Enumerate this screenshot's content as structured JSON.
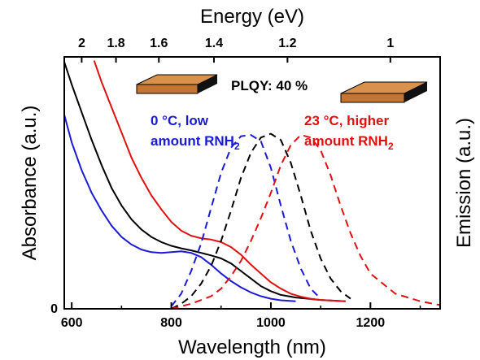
{
  "chart_data": {
    "type": "line",
    "xlabel": "Wavelength (nm)",
    "ylabel_left": "Absorbance (a.u.)",
    "ylabel_right": "Emission (a.u.)",
    "top_axis_label": "Energy (eV)",
    "xlim": [
      585,
      1340
    ],
    "ylim": [
      0,
      1
    ],
    "x_ticks": [
      600,
      800,
      1000,
      1200
    ],
    "y_ticks": [
      0
    ],
    "top_ticks": [
      {
        "label": "2",
        "value": 2.0
      },
      {
        "label": "1.8",
        "value": 1.8
      },
      {
        "label": "1.6",
        "value": 1.6
      },
      {
        "label": "1.4",
        "value": 1.4
      },
      {
        "label": "1.2",
        "value": 1.2
      },
      {
        "label": "1",
        "value": 1.0
      }
    ],
    "grid": false,
    "annotations": {
      "plqy": "PLQY: 40 %",
      "blue_line1": "0 °C, low",
      "blue_line2_main": "amount RNH",
      "blue_line2_sub": "2",
      "red_line1": "23 °C, higher",
      "red_line2_main": "amount RNH",
      "red_line2_sub": "2"
    },
    "colors": {
      "blue": "#1a1ad6",
      "black": "#000000",
      "red": "#e01010",
      "slab_face": "#c57532",
      "slab_edge": "#000000"
    },
    "series": [
      {
        "color": "blue",
        "style": "solid",
        "role": "absorbance",
        "x": [
          585,
          600,
          620,
          640,
          660,
          680,
          700,
          720,
          740,
          760,
          780,
          800,
          820,
          840,
          860,
          880,
          900,
          920,
          940,
          960,
          980,
          1000,
          1020,
          1050
        ],
        "y": [
          0.77,
          0.66,
          0.55,
          0.46,
          0.39,
          0.33,
          0.285,
          0.255,
          0.235,
          0.225,
          0.222,
          0.225,
          0.228,
          0.222,
          0.205,
          0.175,
          0.14,
          0.11,
          0.085,
          0.065,
          0.05,
          0.04,
          0.034,
          0.03
        ]
      },
      {
        "color": "black",
        "style": "solid",
        "role": "absorbance",
        "x": [
          585,
          600,
          620,
          640,
          660,
          680,
          700,
          720,
          740,
          760,
          780,
          800,
          820,
          840,
          860,
          880,
          900,
          920,
          940,
          960,
          980,
          1000,
          1020,
          1050,
          1100,
          1150
        ],
        "y": [
          0.98,
          0.89,
          0.78,
          0.67,
          0.57,
          0.48,
          0.41,
          0.355,
          0.315,
          0.285,
          0.265,
          0.25,
          0.24,
          0.232,
          0.222,
          0.212,
          0.2,
          0.18,
          0.15,
          0.12,
          0.09,
          0.07,
          0.055,
          0.045,
          0.035,
          0.03
        ]
      },
      {
        "color": "red",
        "style": "solid",
        "role": "absorbance",
        "x": [
          645,
          660,
          680,
          700,
          720,
          740,
          760,
          780,
          800,
          820,
          840,
          860,
          880,
          900,
          920,
          940,
          960,
          980,
          1000,
          1020,
          1040,
          1060,
          1080,
          1100,
          1150
        ],
        "y": [
          0.985,
          0.9,
          0.8,
          0.7,
          0.6,
          0.52,
          0.45,
          0.395,
          0.345,
          0.31,
          0.29,
          0.28,
          0.275,
          0.265,
          0.245,
          0.215,
          0.175,
          0.14,
          0.105,
          0.08,
          0.06,
          0.048,
          0.04,
          0.035,
          0.03
        ]
      },
      {
        "color": "blue",
        "style": "dashed",
        "role": "emission",
        "x": [
          800,
          820,
          840,
          860,
          880,
          900,
          920,
          940,
          960,
          980,
          1000,
          1020,
          1040,
          1060,
          1080,
          1100
        ],
        "y": [
          0.01,
          0.06,
          0.15,
          0.26,
          0.4,
          0.54,
          0.64,
          0.685,
          0.69,
          0.665,
          0.56,
          0.41,
          0.27,
          0.16,
          0.08,
          0.04
        ]
      },
      {
        "color": "black",
        "style": "dashed",
        "role": "emission",
        "x": [
          800,
          820,
          840,
          860,
          880,
          900,
          920,
          940,
          960,
          980,
          1000,
          1020,
          1040,
          1060,
          1080,
          1100,
          1120,
          1140,
          1160
        ],
        "y": [
          0.0,
          0.02,
          0.05,
          0.1,
          0.17,
          0.27,
          0.39,
          0.52,
          0.62,
          0.68,
          0.695,
          0.67,
          0.58,
          0.45,
          0.31,
          0.2,
          0.12,
          0.07,
          0.04
        ]
      },
      {
        "color": "red",
        "style": "dashed",
        "role": "emission",
        "x": [
          800,
          840,
          880,
          900,
          920,
          940,
          960,
          980,
          1000,
          1020,
          1040,
          1060,
          1080,
          1100,
          1120,
          1140,
          1160,
          1180,
          1200,
          1250,
          1300,
          1340
        ],
        "y": [
          0.0,
          0.02,
          0.05,
          0.08,
          0.13,
          0.19,
          0.27,
          0.36,
          0.46,
          0.57,
          0.65,
          0.69,
          0.68,
          0.63,
          0.53,
          0.41,
          0.3,
          0.21,
          0.14,
          0.06,
          0.03,
          0.015
        ]
      }
    ]
  }
}
